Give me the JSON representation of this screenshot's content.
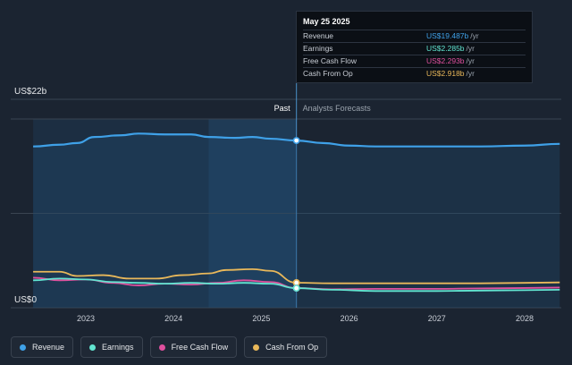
{
  "chart_data": {
    "type": "line",
    "y_axis": {
      "unit": "US$b",
      "ylim": [
        0,
        22
      ],
      "top_label": "US$22b",
      "bottom_label": "US$0"
    },
    "x_ticks": [
      "2023",
      "2024",
      "2025",
      "2026",
      "2027",
      "2028"
    ],
    "divider_date": 2025.4,
    "highlight_range": [
      2024.4,
      2025.4
    ],
    "past_label": "Past",
    "forecast_label": "Analysts Forecasts",
    "series": [
      {
        "name": "Revenue",
        "color": "#3fa1e8",
        "x": [
          2022.4,
          2022.7,
          2022.9,
          2023.1,
          2023.4,
          2023.6,
          2023.9,
          2024.2,
          2024.4,
          2024.7,
          2024.9,
          2025.1,
          2025.4,
          2025.7,
          2026.0,
          2026.3,
          2026.7,
          2027.0,
          2027.5,
          2028.0,
          2028.4
        ],
        "y": [
          18.8,
          19.0,
          19.2,
          19.9,
          20.1,
          20.3,
          20.2,
          20.2,
          19.9,
          19.8,
          19.9,
          19.7,
          19.487,
          19.2,
          18.9,
          18.8,
          18.8,
          18.8,
          18.8,
          18.9,
          19.1
        ]
      },
      {
        "name": "Earnings",
        "color": "#62e5d1",
        "x": [
          2022.4,
          2022.7,
          2023.0,
          2023.3,
          2023.6,
          2023.9,
          2024.2,
          2024.5,
          2024.8,
          2025.1,
          2025.4,
          2025.8,
          2026.3,
          2027.0,
          2027.5,
          2028.0,
          2028.4
        ],
        "y": [
          3.2,
          3.4,
          3.3,
          3.0,
          2.9,
          2.8,
          2.9,
          2.8,
          2.9,
          2.8,
          2.285,
          2.1,
          1.95,
          1.95,
          2.0,
          2.05,
          2.1
        ]
      },
      {
        "name": "Free Cash Flow",
        "color": "#e0509e",
        "x": [
          2022.4,
          2022.7,
          2023.0,
          2023.3,
          2023.6,
          2023.9,
          2024.2,
          2024.5,
          2024.8,
          2025.1,
          2025.4,
          2025.8,
          2026.3,
          2027.0,
          2027.5,
          2028.0,
          2028.4
        ],
        "y": [
          3.5,
          3.2,
          3.3,
          2.9,
          2.6,
          2.8,
          2.7,
          2.9,
          3.2,
          3.0,
          2.293,
          2.15,
          2.2,
          2.2,
          2.25,
          2.3,
          2.35
        ]
      },
      {
        "name": "Cash From Op",
        "color": "#e9b85a",
        "x": [
          2022.4,
          2022.7,
          2022.9,
          2023.2,
          2023.5,
          2023.8,
          2024.1,
          2024.4,
          2024.6,
          2024.9,
          2025.1,
          2025.4,
          2025.8,
          2026.3,
          2027.0,
          2027.5,
          2028.0,
          2028.4
        ],
        "y": [
          4.2,
          4.2,
          3.7,
          3.8,
          3.4,
          3.4,
          3.8,
          4.0,
          4.4,
          4.5,
          4.3,
          2.918,
          2.85,
          2.85,
          2.85,
          2.85,
          2.9,
          2.95
        ]
      }
    ]
  },
  "tooltip": {
    "date": "May 25 2025",
    "unit": "/yr",
    "rows": [
      {
        "name": "Revenue",
        "value": "US$19.487b",
        "color": "#3fa1e8"
      },
      {
        "name": "Earnings",
        "value": "US$2.285b",
        "color": "#62e5d1"
      },
      {
        "name": "Free Cash Flow",
        "value": "US$2.293b",
        "color": "#e0509e"
      },
      {
        "name": "Cash From Op",
        "value": "US$2.918b",
        "color": "#e9b85a"
      }
    ]
  },
  "legend": [
    {
      "label": "Revenue",
      "color": "#3fa1e8"
    },
    {
      "label": "Earnings",
      "color": "#62e5d1"
    },
    {
      "label": "Free Cash Flow",
      "color": "#e0509e"
    },
    {
      "label": "Cash From Op",
      "color": "#e9b85a"
    }
  ]
}
